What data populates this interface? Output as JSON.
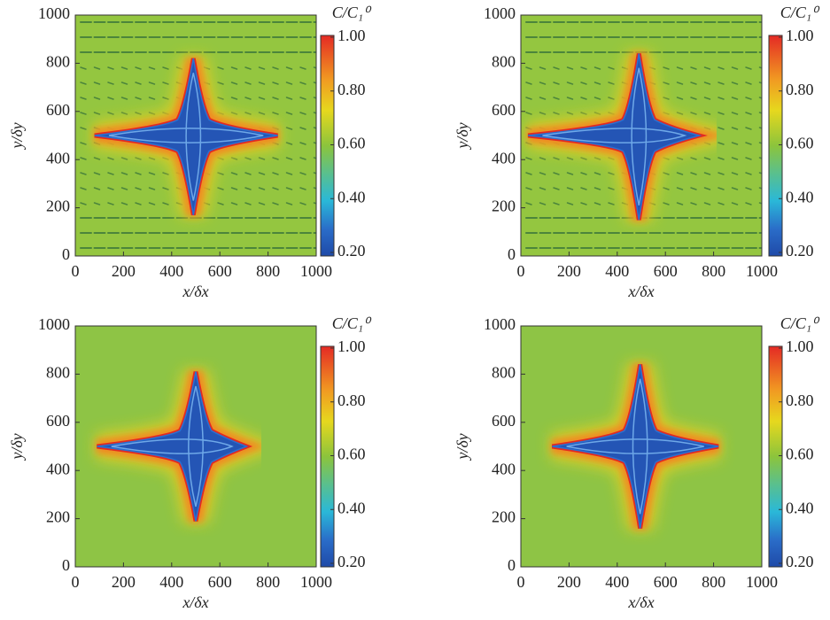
{
  "chart_data": [
    {
      "type": "heatmap",
      "xlabel": "x/δx",
      "ylabel": "y/δy",
      "colorbar_label": "C/C₁⁰",
      "xlim": [
        0,
        1000
      ],
      "ylim": [
        0,
        1000
      ],
      "xticks": [
        0,
        200,
        400,
        600,
        800,
        1000
      ],
      "yticks": [
        0,
        200,
        400,
        600,
        800,
        1000
      ],
      "clim": [
        0.2,
        1.0
      ],
      "colorbar_ticks": [
        {
          "value": 0.2,
          "label": "0.20"
        },
        {
          "value": 0.4,
          "label": "0.40"
        },
        {
          "value": 0.6,
          "label": "0.60"
        },
        {
          "value": 0.8,
          "label": "0.80"
        },
        {
          "value": 1.0,
          "label": "1.00"
        }
      ]
    },
    {
      "type": "heatmap",
      "xlabel": "x/δx",
      "ylabel": "y/δy",
      "colorbar_label": "C/C₁⁰",
      "xlim": [
        0,
        1000
      ],
      "ylim": [
        0,
        1000
      ],
      "xticks": [
        0,
        200,
        400,
        600,
        800,
        1000
      ],
      "yticks": [
        0,
        200,
        400,
        600,
        800,
        1000
      ],
      "clim": [
        0.2,
        1.0
      ],
      "colorbar_ticks": [
        {
          "value": 0.2,
          "label": "0.20"
        },
        {
          "value": 0.4,
          "label": "0.40"
        },
        {
          "value": 0.6,
          "label": "0.60"
        },
        {
          "value": 0.8,
          "label": "0.80"
        },
        {
          "value": 1.0,
          "label": "1.00"
        }
      ]
    },
    {
      "type": "heatmap",
      "xlabel": "x/δx",
      "ylabel": "y/δy",
      "colorbar_label": "C/C₁⁰",
      "xlim": [
        0,
        1000
      ],
      "ylim": [
        0,
        1000
      ],
      "xticks": [
        0,
        200,
        400,
        600,
        800,
        1000
      ],
      "yticks": [
        0,
        200,
        400,
        600,
        800,
        1000
      ],
      "clim": [
        0.2,
        1.0
      ],
      "colorbar_ticks": [
        {
          "value": 0.2,
          "label": "0.20"
        },
        {
          "value": 0.4,
          "label": "0.40"
        },
        {
          "value": 0.6,
          "label": "0.60"
        },
        {
          "value": 0.8,
          "label": "0.80"
        },
        {
          "value": 1.0,
          "label": "1.00"
        }
      ]
    },
    {
      "type": "heatmap",
      "xlabel": "x/δx",
      "ylabel": "y/δy",
      "colorbar_label": "C/C₁⁰",
      "xlim": [
        0,
        1000
      ],
      "ylim": [
        0,
        1000
      ],
      "xticks": [
        0,
        200,
        400,
        600,
        800,
        1000
      ],
      "yticks": [
        0,
        200,
        400,
        600,
        800,
        1000
      ],
      "clim": [
        0.2,
        1.0
      ],
      "colorbar_ticks": [
        {
          "value": 0.2,
          "label": "0.20"
        },
        {
          "value": 0.4,
          "label": "0.40"
        },
        {
          "value": 0.6,
          "label": "0.60"
        },
        {
          "value": 0.8,
          "label": "0.80"
        },
        {
          "value": 1.0,
          "label": "1.00"
        }
      ]
    }
  ]
}
